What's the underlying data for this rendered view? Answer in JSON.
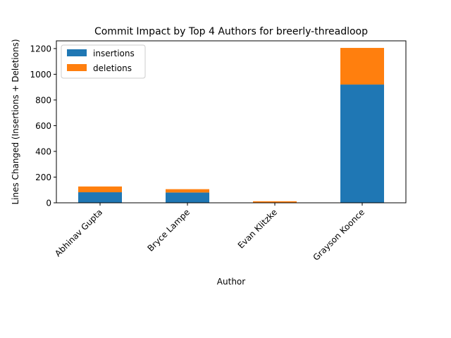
{
  "chart_data": {
    "type": "bar",
    "stacked": true,
    "title": "Commit Impact by Top 4 Authors for breerly-threadloop",
    "xlabel": "Author",
    "ylabel": "Lines Changed (Insertions + Deletions)",
    "categories": [
      "Abhinav Gupta",
      "Bryce Lampe",
      "Evan Klitzke",
      "Grayson Koonce"
    ],
    "series": [
      {
        "name": "insertions",
        "color": "#1f77b4",
        "values": [
          82,
          80,
          2,
          920
        ]
      },
      {
        "name": "deletions",
        "color": "#ff7f0e",
        "values": [
          45,
          26,
          10,
          285
        ]
      }
    ],
    "ylim": [
      0,
      1260
    ],
    "yticks": [
      0,
      200,
      400,
      600,
      800,
      1000,
      1200
    ],
    "grid": false,
    "legend_position": "top-left"
  }
}
